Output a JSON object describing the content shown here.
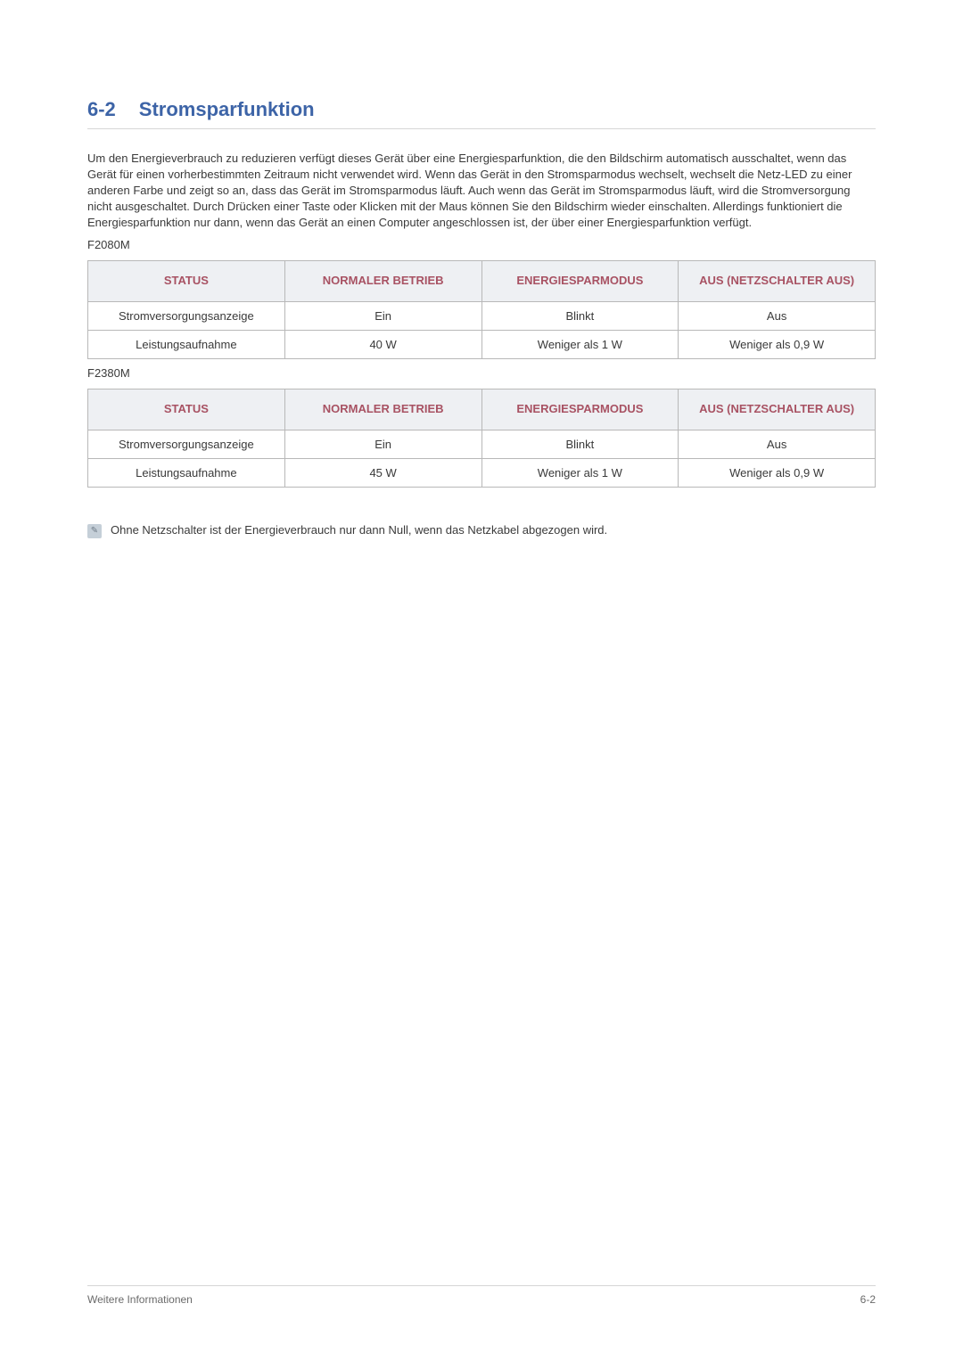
{
  "colors": {
    "heading": "#3d64a7",
    "table_header_bg": "#eef0f3",
    "table_header_text": "#a85263",
    "table_border": "#b8b8b8",
    "body_text": "#3a3a3a",
    "rule": "#d6d6d6",
    "note_icon_bg": "#c5cfd8",
    "note_icon_fg": "#6e7a86",
    "footer_text": "#6a6a6a"
  },
  "typography": {
    "heading_fontsize_pt": 16,
    "body_fontsize_pt": 10,
    "table_fontsize_pt": 10,
    "font_family": "Arial"
  },
  "heading": {
    "num": "6-2",
    "title": "Stromsparfunktion"
  },
  "body": "Um den Energieverbrauch zu reduzieren verfügt dieses Gerät über eine Energiesparfunktion, die den Bildschirm automatisch ausschaltet, wenn das Gerät für einen vorherbestimmten Zeitraum nicht verwendet wird. Wenn das Gerät in den Stromsparmodus wechselt, wechselt die Netz-LED zu einer anderen Farbe und zeigt so an, dass das Gerät im Stromsparmodus läuft. Auch wenn das Gerät im Stromsparmodus läuft, wird die Stromversorgung nicht ausgeschaltet. Durch Drücken einer Taste oder Klicken mit der Maus können Sie den Bildschirm wieder einschalten. Allerdings funktioniert die Energiesparfunktion nur dann, wenn das Gerät an einen Computer angeschlossen ist, der über einer Energiesparfunktion verfügt.",
  "model1": {
    "label": "F2080M",
    "table": {
      "type": "table",
      "col_widths_pct": [
        25,
        25,
        25,
        25
      ],
      "columns": [
        "STATUS",
        "NORMALER BETRIEB",
        "ENERGIESPARMODUS",
        "AUS (NETZSCHALTER AUS)"
      ],
      "rows": [
        [
          "Stromversorgungsanzeige",
          "Ein",
          "Blinkt",
          "Aus"
        ],
        [
          "Leistungsaufnahme",
          "40 W",
          "Weniger als 1 W",
          "Weniger als 0,9 W"
        ]
      ]
    }
  },
  "model2": {
    "label": "F2380M",
    "table": {
      "type": "table",
      "col_widths_pct": [
        25,
        25,
        25,
        25
      ],
      "columns": [
        "STATUS",
        "NORMALER BETRIEB",
        "ENERGIESPARMODUS",
        "AUS (NETZSCHALTER AUS)"
      ],
      "rows": [
        [
          "Stromversorgungsanzeige",
          "Ein",
          "Blinkt",
          "Aus"
        ],
        [
          "Leistungsaufnahme",
          "45 W",
          "Weniger als 1 W",
          "Weniger als 0,9 W"
        ]
      ]
    }
  },
  "note": {
    "icon_glyph": "✎",
    "text": "Ohne Netzschalter ist der Energieverbrauch nur dann Null, wenn das Netzkabel abgezogen wird."
  },
  "footer": {
    "left": "Weitere Informationen",
    "right": "6-2"
  }
}
